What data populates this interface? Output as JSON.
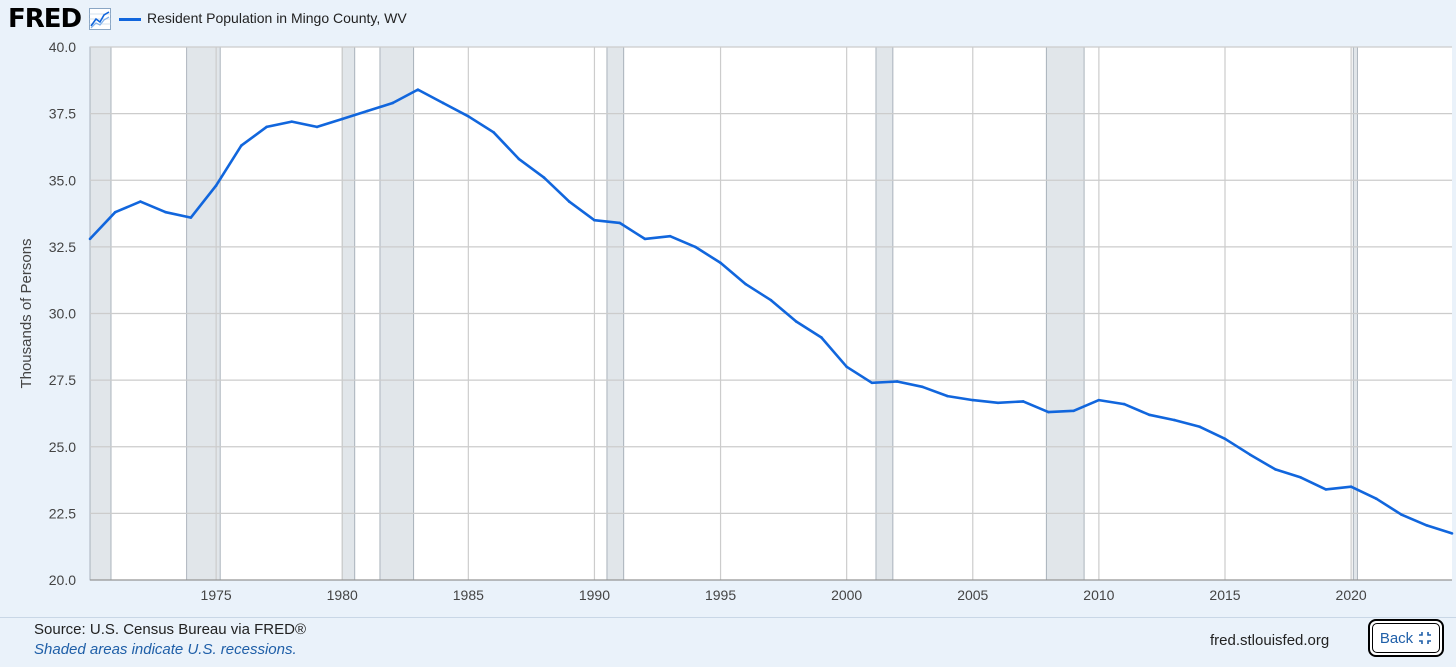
{
  "header": {
    "logo": "FRED",
    "graph_icon": "line-graph-icon",
    "legend_label": "Resident Population in Mingo County, WV"
  },
  "footer": {
    "source": "Source: U.S. Census Bureau via FRED®",
    "note": "Shaded areas indicate U.S. recessions.",
    "site": "fred.stlouisfed.org",
    "back_label": "Back",
    "back_icon": "collapse-icon"
  },
  "colors": {
    "line": "#1166dd",
    "recession": "#e1e6ea",
    "grid": "#cccccc",
    "background": "#eaf2fa",
    "plot": "#ffffff"
  },
  "chart_data": {
    "type": "line",
    "title": "",
    "xlabel": "",
    "ylabel": "Thousands of Persons",
    "xlim": [
      "1970-01-01",
      "2024-01-01"
    ],
    "ylim": [
      20.0,
      40.0
    ],
    "x_ticks": [
      "1975",
      "1980",
      "1985",
      "1990",
      "1995",
      "2000",
      "2005",
      "2010",
      "2015",
      "2020"
    ],
    "y_ticks": [
      "20.0",
      "22.5",
      "25.0",
      "27.5",
      "30.0",
      "32.5",
      "35.0",
      "37.5",
      "40.0"
    ],
    "grid": true,
    "legend": "top-left",
    "series": [
      {
        "name": "Resident Population in Mingo County, WV",
        "x": [
          "1970-01-01",
          "1971-01-01",
          "1972-01-01",
          "1973-01-01",
          "1974-01-01",
          "1975-01-01",
          "1976-01-01",
          "1977-01-01",
          "1978-01-01",
          "1979-01-01",
          "1980-01-01",
          "1981-01-01",
          "1982-01-01",
          "1983-01-01",
          "1984-01-01",
          "1985-01-01",
          "1986-01-01",
          "1987-01-01",
          "1988-01-01",
          "1989-01-01",
          "1990-01-01",
          "1991-01-01",
          "1992-01-01",
          "1993-01-01",
          "1994-01-01",
          "1995-01-01",
          "1996-01-01",
          "1997-01-01",
          "1998-01-01",
          "1999-01-01",
          "2000-01-01",
          "2001-01-01",
          "2002-01-01",
          "2003-01-01",
          "2004-01-01",
          "2005-01-01",
          "2006-01-01",
          "2007-01-01",
          "2008-01-01",
          "2009-01-01",
          "2010-01-01",
          "2011-01-01",
          "2012-01-01",
          "2013-01-01",
          "2014-01-01",
          "2015-01-01",
          "2016-01-01",
          "2017-01-01",
          "2018-01-01",
          "2019-01-01",
          "2020-01-01",
          "2021-01-01",
          "2022-01-01",
          "2023-01-01",
          "2024-01-01"
        ],
        "values": [
          32.8,
          33.8,
          34.2,
          33.8,
          33.6,
          34.8,
          36.3,
          37.0,
          37.2,
          37.0,
          37.3,
          37.6,
          37.9,
          38.4,
          37.9,
          37.4,
          36.8,
          35.8,
          35.1,
          34.2,
          33.5,
          33.4,
          32.8,
          32.9,
          32.5,
          31.9,
          31.1,
          30.5,
          29.7,
          29.1,
          28.0,
          27.4,
          27.45,
          27.25,
          26.9,
          26.75,
          26.65,
          26.7,
          26.3,
          26.35,
          26.75,
          26.6,
          26.2,
          26.0,
          25.75,
          25.3,
          24.7,
          24.15,
          23.85,
          23.4,
          23.5,
          23.05,
          22.45,
          22.05,
          21.75
        ]
      }
    ],
    "recessions": [
      [
        "1969-12-01",
        "1970-11-01"
      ],
      [
        "1973-11-01",
        "1975-03-01"
      ],
      [
        "1980-01-01",
        "1980-07-01"
      ],
      [
        "1981-07-01",
        "1982-11-01"
      ],
      [
        "1990-07-01",
        "1991-03-01"
      ],
      [
        "2001-03-01",
        "2001-11-01"
      ],
      [
        "2007-12-01",
        "2009-06-01"
      ],
      [
        "2020-02-01",
        "2020-04-01"
      ]
    ]
  }
}
